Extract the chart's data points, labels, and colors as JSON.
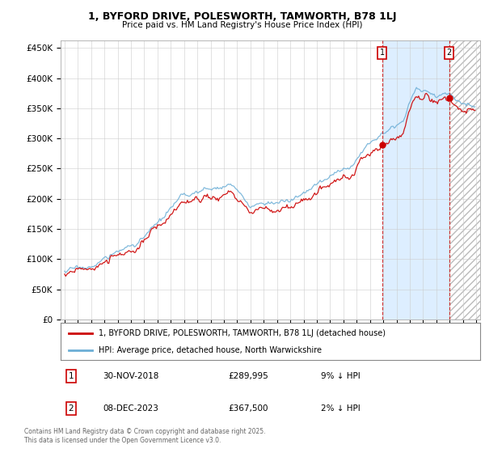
{
  "title_line1": "1, BYFORD DRIVE, POLESWORTH, TAMWORTH, B78 1LJ",
  "title_line2": "Price paid vs. HM Land Registry's House Price Index (HPI)",
  "legend_label1": "1, BYFORD DRIVE, POLESWORTH, TAMWORTH, B78 1LJ (detached house)",
  "legend_label2": "HPI: Average price, detached house, North Warwickshire",
  "annotation1": {
    "label": "1",
    "date": "30-NOV-2018",
    "price": "£289,995",
    "hpi": "9% ↓ HPI"
  },
  "annotation2": {
    "label": "2",
    "date": "08-DEC-2023",
    "price": "£367,500",
    "hpi": "2% ↓ HPI"
  },
  "footer": "Contains HM Land Registry data © Crown copyright and database right 2025.\nThis data is licensed under the Open Government Licence v3.0.",
  "line1_color": "#cc0000",
  "line2_color": "#6baed6",
  "highlight_color": "#ddeeff",
  "hatch_color": "#cccccc",
  "background_color": "#ffffff",
  "grid_color": "#cccccc",
  "sale1_year": 2018.917,
  "sale2_year": 2023.958,
  "sale1_price": 289995,
  "sale2_price": 367500,
  "ylim": [
    0,
    462000
  ],
  "yticks": [
    0,
    50000,
    100000,
    150000,
    200000,
    250000,
    300000,
    350000,
    400000,
    450000
  ],
  "ytick_labels": [
    "£0",
    "£50K",
    "£100K",
    "£150K",
    "£200K",
    "£250K",
    "£300K",
    "£350K",
    "£400K",
    "£450K"
  ],
  "xmin": 1994.7,
  "xmax": 2026.3
}
